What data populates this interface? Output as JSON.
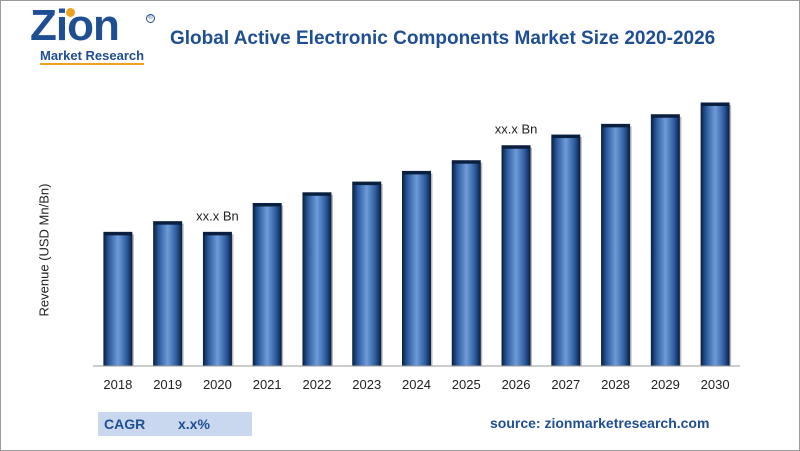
{
  "logo": {
    "main": "Zion",
    "sub": "Market Research",
    "reg": "®"
  },
  "title": "Global Active Electronic Components Market Size 2020-2026",
  "cagr": {
    "label": "CAGR",
    "value": "x.x%"
  },
  "source": "source: zionmarketresearch.com",
  "colors": {
    "title": "#1f4f93",
    "bar_dark": "#0c2348",
    "bar_mid": "#3a6aae",
    "bar_light": "#6f9bd8",
    "cagr_bg": "#c9d8ef",
    "accent": "#f0a020"
  },
  "chart_data": {
    "type": "bar",
    "title": "Global Active Electronic Components Market Size 2020-2026",
    "xlabel": "",
    "ylabel": "Revenue (USD Mn/Bn)",
    "categories": [
      "2018",
      "2019",
      "2020",
      "2021",
      "2022",
      "2023",
      "2024",
      "2025",
      "2026",
      "2027",
      "2028",
      "2029",
      "2030"
    ],
    "values": [
      12.5,
      13.5,
      12.5,
      15.2,
      16.2,
      17.2,
      18.2,
      19.2,
      20.6,
      21.6,
      22.6,
      23.5,
      24.6
    ],
    "ylim": [
      0,
      26
    ],
    "grid": false,
    "annotations": [
      {
        "category": "2020",
        "text": "xx.x Bn"
      },
      {
        "category": "2026",
        "text": "xx.x Bn"
      }
    ]
  }
}
